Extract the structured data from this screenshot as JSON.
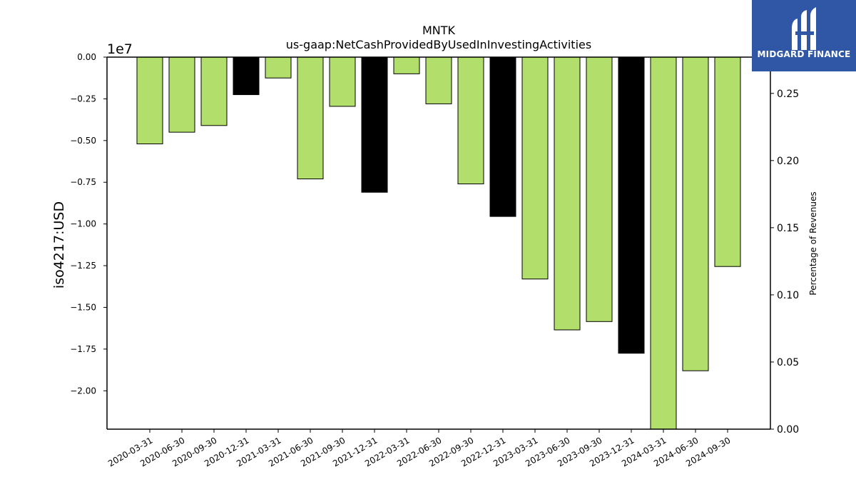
{
  "chart_data": {
    "type": "bar",
    "title": "MNTK",
    "subtitle": "us-gaap:NetCashProvidedByUsedInInvestingActivities",
    "ylabel": "iso4217:USD",
    "y_multiplier_label": "1e7",
    "y2label": "Percentage of Revenues",
    "ylim": [
      -22300000,
      0
    ],
    "y2lim": [
      0,
      0.277
    ],
    "yticks": [
      "0.00",
      "−0.25",
      "−0.50",
      "−0.75",
      "−1.00",
      "−1.25",
      "−1.50",
      "−1.75",
      "−2.00"
    ],
    "y2ticks": [
      "0.00",
      "0.05",
      "0.10",
      "0.15",
      "0.20",
      "0.25"
    ],
    "categories": [
      "2020-03-31",
      "2020-06-30",
      "2020-09-30",
      "2020-12-31",
      "2021-03-31",
      "2021-06-30",
      "2021-09-30",
      "2021-12-31",
      "2022-03-31",
      "2022-06-30",
      "2022-09-30",
      "2022-12-31",
      "2023-03-31",
      "2023-06-30",
      "2023-09-30",
      "2023-12-31",
      "2024-03-31",
      "2024-06-30",
      "2024-09-30"
    ],
    "values": [
      -5200000,
      -4500000,
      -4100000,
      -2250000,
      -1250000,
      -7300000,
      -2950000,
      -8100000,
      -1000000,
      -2800000,
      -7600000,
      -9550000,
      -13300000,
      -16350000,
      -15850000,
      -17750000,
      -22300000,
      -18800000,
      -12550000
    ],
    "bar_colors": [
      "#b2df6b",
      "#b2df6b",
      "#b2df6b",
      "#000000",
      "#b2df6b",
      "#b2df6b",
      "#b2df6b",
      "#000000",
      "#b2df6b",
      "#b2df6b",
      "#b2df6b",
      "#000000",
      "#b2df6b",
      "#b2df6b",
      "#b2df6b",
      "#000000",
      "#b2df6b",
      "#b2df6b",
      "#b2df6b"
    ],
    "grid": false,
    "legend": "none"
  },
  "logo": {
    "name": "MIDGARD FINANCE",
    "color": "#2f57a6"
  }
}
